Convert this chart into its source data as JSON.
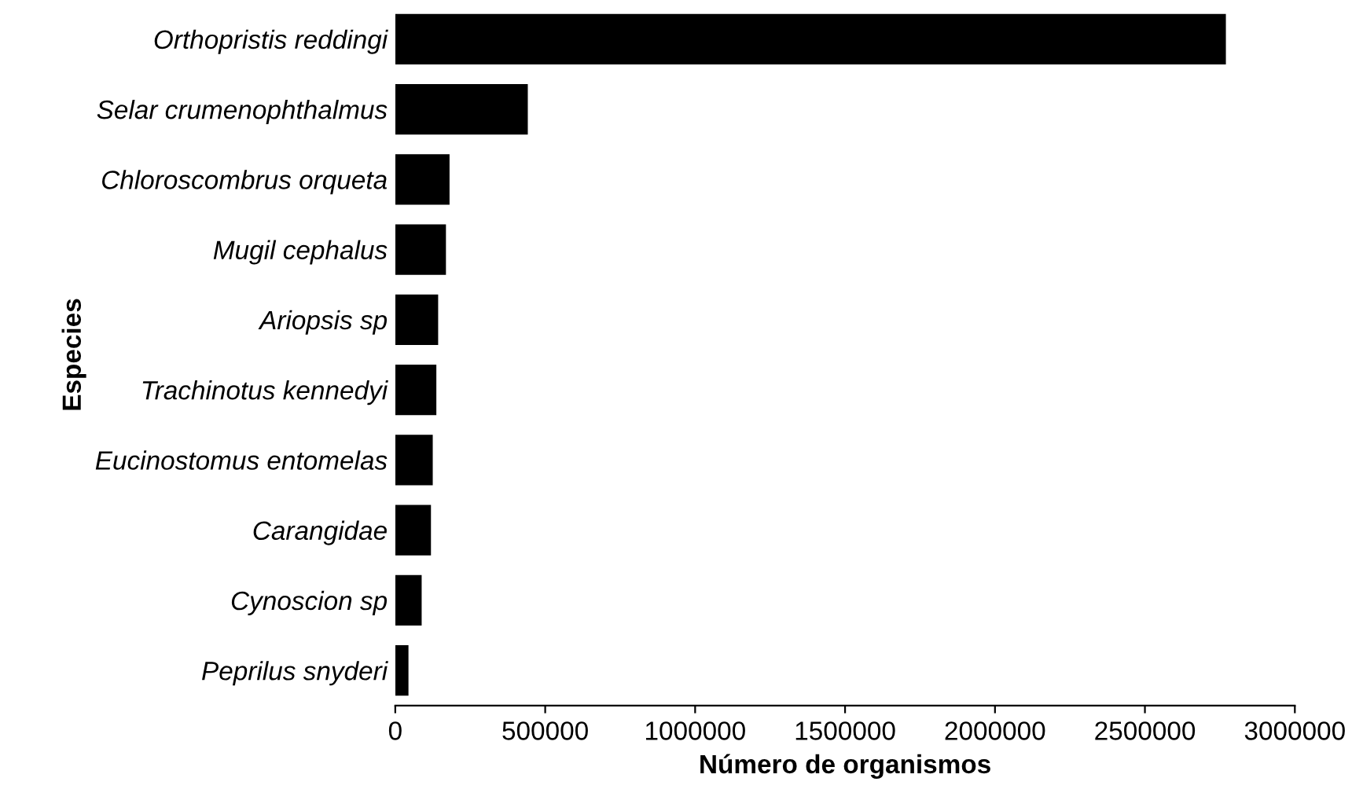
{
  "chart_data": {
    "type": "bar",
    "orientation": "horizontal",
    "xlabel": "Número de organismos",
    "ylabel": "Especies",
    "categories": [
      "Orthopristis reddingi",
      "Selar crumenophthalmus",
      "Chloroscombrus orqueta",
      "Mugil cephalus",
      "Ariopsis sp",
      "Trachinotus kennedyi",
      "Eucinostomus entomelas",
      "Carangidae",
      "Cynoscion sp",
      "Peprilus snyderi"
    ],
    "values": [
      2770000,
      442000,
      181000,
      169000,
      143000,
      137000,
      125000,
      119000,
      88000,
      44000
    ],
    "color": "#000000",
    "xlim": [
      0,
      3000000
    ],
    "xticks": [
      0,
      500000,
      1000000,
      1500000,
      2000000,
      2500000,
      3000000
    ],
    "grid": false,
    "legend": false
  }
}
